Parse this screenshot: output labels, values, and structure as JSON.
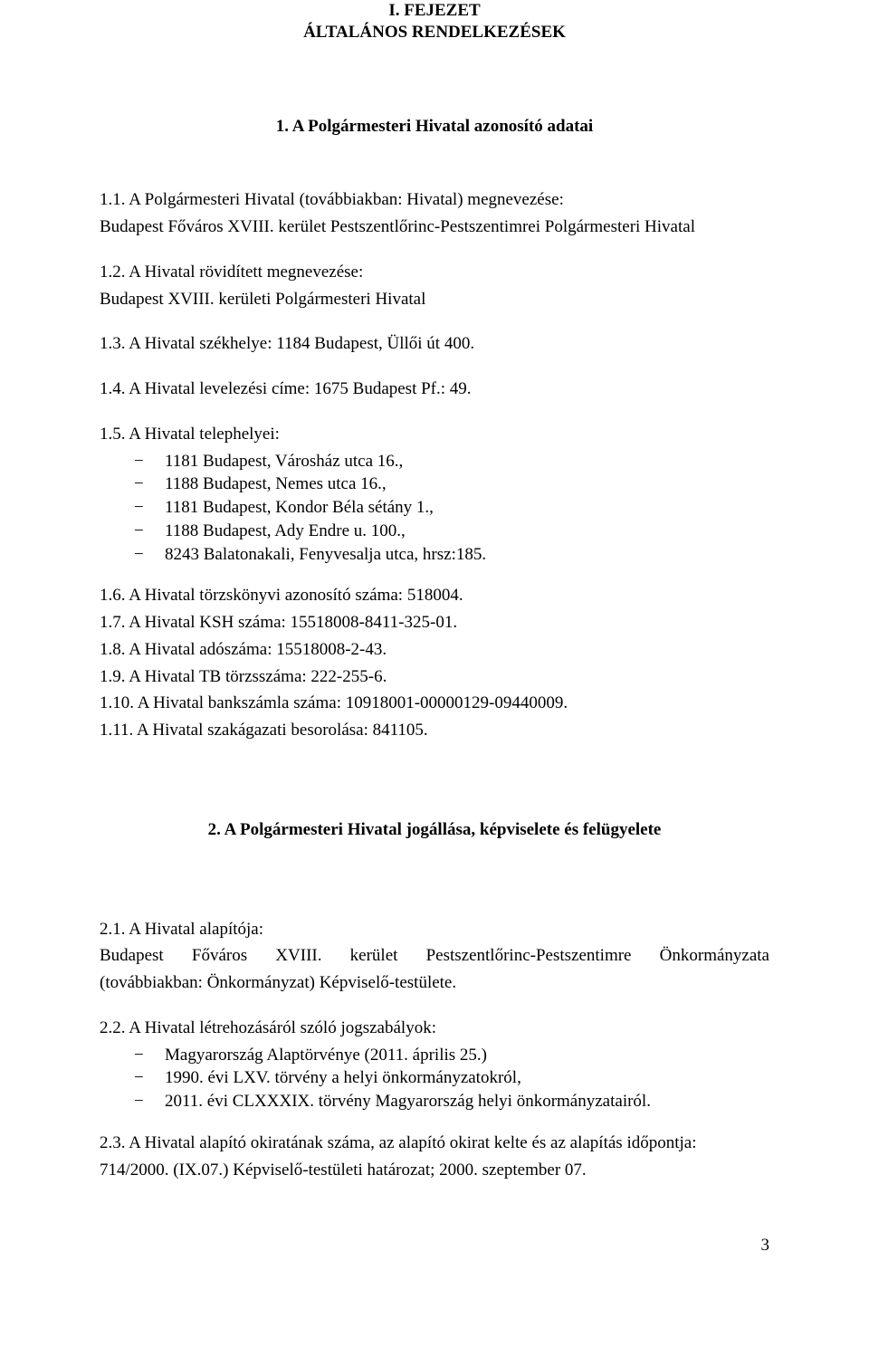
{
  "chapter": {
    "title_line1": "I. FEJEZET",
    "title_line2": "ÁLTALÁNOS RENDELKEZÉSEK"
  },
  "section1": {
    "title": "1. A Polgármesteri Hivatal azonosító adatai",
    "p1_1a": "1.1. A Polgármesteri Hivatal (továbbiakban: Hivatal) megnevezése:",
    "p1_1b": "Budapest Főváros XVIII. kerület Pestszentlőrinc-Pestszentimrei Polgármesteri Hivatal",
    "p1_2a": "1.2. A Hivatal rövidített megnevezése:",
    "p1_2b": "Budapest XVIII. kerületi Polgármesteri Hivatal",
    "p1_3": "1.3. A Hivatal székhelye: 1184 Budapest, Üllői út 400.",
    "p1_4": "1.4. A Hivatal levelezési címe: 1675 Budapest Pf.: 49.",
    "p1_5": "1.5. A Hivatal telephelyei:",
    "sites": [
      "1181 Budapest, Városház utca 16.,",
      "1188 Budapest, Nemes utca 16.,",
      "1181 Budapest, Kondor Béla sétány 1.,",
      "1188 Budapest, Ady Endre u. 100.,",
      "8243 Balatonakali, Fenyvesalja utca, hrsz:185."
    ],
    "p1_6": "1.6. A Hivatal törzskönyvi azonosító száma: 518004.",
    "p1_7": "1.7. A Hivatal KSH száma: 15518008-8411-325-01.",
    "p1_8": "1.8. A Hivatal adószáma: 15518008-2-43.",
    "p1_9": "1.9. A Hivatal TB törzsszáma: 222-255-6.",
    "p1_10": "1.10. A Hivatal bankszámla száma: 10918001-00000129-09440009.",
    "p1_11": "1.11. A Hivatal szakágazati besorolása: 841105."
  },
  "section2": {
    "title": "2. A Polgármesteri Hivatal jogállása, képviselete és felügyelete",
    "p2_1a": "2.1. A Hivatal alapítója:",
    "p2_1b_left": "Budapest",
    "p2_1b_mid1": "Főváros",
    "p2_1b_mid2": "XVIII.",
    "p2_1b_mid3": "kerület",
    "p2_1b_mid4": "Pestszentlőrinc-Pestszentimre",
    "p2_1b_right": "Önkormányzata",
    "p2_1c": "(továbbiakban: Önkormányzat) Képviselő-testülete.",
    "p2_2": "2.2. A Hivatal létrehozásáról szóló jogszabályok:",
    "laws": [
      "Magyarország Alaptörvénye (2011. április 25.)",
      "1990. évi LXV. törvény a helyi önkormányzatokról,",
      "2011. évi CLXXXIX. törvény Magyarország helyi önkormányzatairól."
    ],
    "p2_3a": "2.3. A Hivatal alapító okiratának száma, az alapító okirat kelte és az alapítás időpontja:",
    "p2_3b": "714/2000. (IX.07.) Képviselő-testületi határozat; 2000. szeptember 07."
  },
  "page_number": "3"
}
